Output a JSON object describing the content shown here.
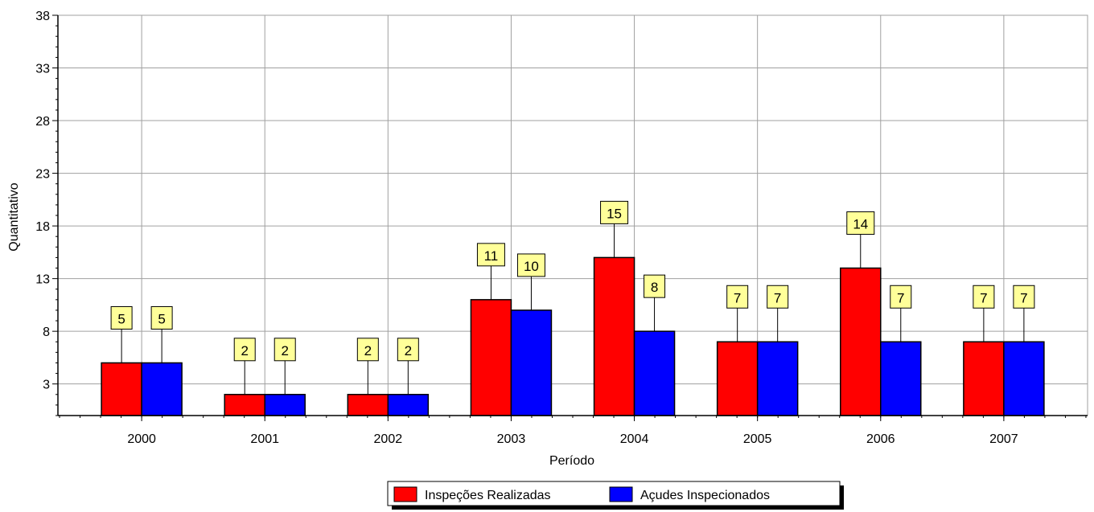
{
  "chart_data": {
    "type": "bar",
    "title": "",
    "xlabel": "Período",
    "ylabel": "Quantitativo",
    "categories": [
      "2000",
      "2001",
      "2002",
      "2003",
      "2004",
      "2005",
      "2006",
      "2007"
    ],
    "series": [
      {
        "name": "Inspeções Realizadas",
        "color": "#ff0000",
        "values": [
          5,
          2,
          2,
          11,
          15,
          7,
          14,
          7
        ]
      },
      {
        "name": "Açudes Inspecionados",
        "color": "#0000ff",
        "values": [
          5,
          2,
          2,
          10,
          8,
          7,
          7,
          7
        ]
      }
    ],
    "ylim": [
      0,
      38
    ],
    "yticks": [
      3,
      8,
      13,
      18,
      23,
      28,
      33,
      38
    ],
    "grid": true,
    "data_labels": true,
    "data_label_color": "#ffff99",
    "legend_position": "bottom"
  }
}
